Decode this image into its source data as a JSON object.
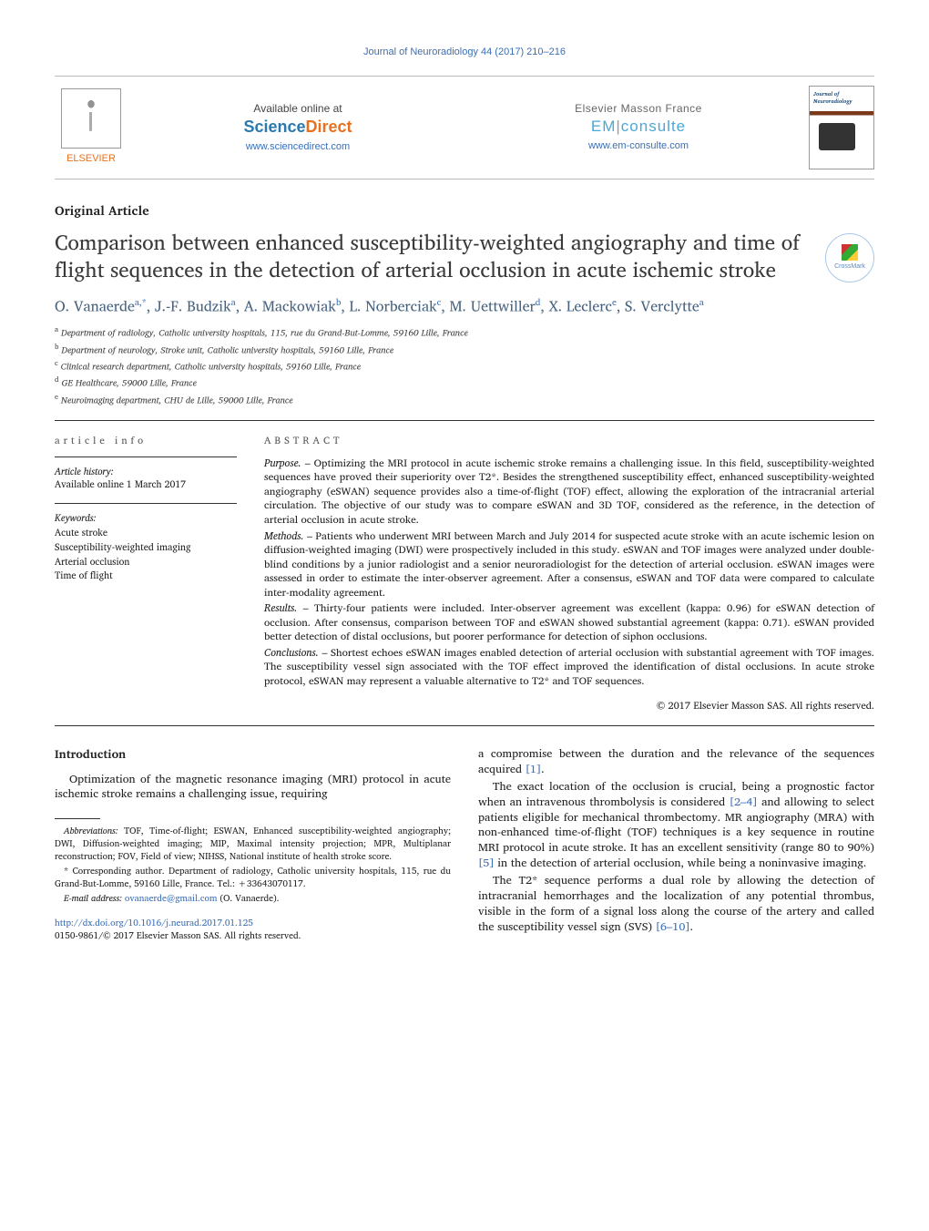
{
  "journal_header": "Journal of Neuroradiology 44 (2017) 210–216",
  "top": {
    "elsevier": "ELSEVIER",
    "available_label": "Available online at",
    "sciencedirect_1": "Science",
    "sciencedirect_2": "Direct",
    "sd_url": "www.sciencedirect.com",
    "masson_label": "Elsevier Masson France",
    "em_prefix": "EM",
    "em_consulte": "consulte",
    "em_url": "www.em-consulte.com"
  },
  "article_type": "Original Article",
  "title": "Comparison between enhanced susceptibility-weighted angiography and time of flight sequences in the detection of arterial occlusion in acute ischemic stroke",
  "crossmark": "CrossMark",
  "authors_html": "O. Vanaerde<sup>a,*</sup>, J.-F. Budzik<sup>a</sup>, A. Mackowiak<sup>b</sup>, L. Norberciak<sup>c</sup>, M. Uettwiller<sup>d</sup>, X. Leclerc<sup>e</sup>, S. Verclytte<sup>a</sup>",
  "affiliations": [
    {
      "sup": "a",
      "text": "Department of radiology, Catholic university hospitals, 115, rue du Grand-But-Lomme, 59160 Lille, France"
    },
    {
      "sup": "b",
      "text": "Department of neurology, Stroke unit, Catholic university hospitals, 59160 Lille, France"
    },
    {
      "sup": "c",
      "text": "Clinical research department, Catholic university hospitals, 59160 Lille, France"
    },
    {
      "sup": "d",
      "text": "GE Healthcare, 59000 Lille, France"
    },
    {
      "sup": "e",
      "text": "Neuroimaging department, CHU de Lille, 59000 Lille, France"
    }
  ],
  "info": {
    "section_label": "article info",
    "history_label": "Article history:",
    "history_text": "Available online 1 March 2017",
    "keywords_label": "Keywords:",
    "keywords": [
      "Acute stroke",
      "Susceptibility-weighted imaging",
      "Arterial occlusion",
      "Time of flight"
    ]
  },
  "abstract": {
    "section_label": "abstract",
    "paras": [
      {
        "label": "Purpose. –",
        "text": "Optimizing the MRI protocol in acute ischemic stroke remains a challenging issue. In this field, susceptibility-weighted sequences have proved their superiority over T2*. Besides the strengthened susceptibility effect, enhanced susceptibility-weighted angiography (eSWAN) sequence provides also a time-of-flight (TOF) effect, allowing the exploration of the intracranial arterial circulation. The objective of our study was to compare eSWAN and 3D TOF, considered as the reference, in the detection of arterial occlusion in acute stroke."
      },
      {
        "label": "Methods. –",
        "text": "Patients who underwent MRI between March and July 2014 for suspected acute stroke with an acute ischemic lesion on diffusion-weighted imaging (DWI) were prospectively included in this study. eSWAN and TOF images were analyzed under double-blind conditions by a junior radiologist and a senior neuroradiologist for the detection of arterial occlusion. eSWAN images were assessed in order to estimate the inter-observer agreement. After a consensus, eSWAN and TOF data were compared to calculate inter-modality agreement."
      },
      {
        "label": "Results. –",
        "text": "Thirty-four patients were included. Inter-observer agreement was excellent (kappa: 0.96) for eSWAN detection of occlusion. After consensus, comparison between TOF and eSWAN showed substantial agreement (kappa: 0.71). eSWAN provided better detection of distal occlusions, but poorer performance for detection of siphon occlusions."
      },
      {
        "label": "Conclusions. –",
        "text": "Shortest echoes eSWAN images enabled detection of arterial occlusion with substantial agreement with TOF images. The susceptibility vessel sign associated with the TOF effect improved the identification of distal occlusions. In acute stroke protocol, eSWAN may represent a valuable alternative to T2* and TOF sequences."
      }
    ],
    "copyright": "© 2017 Elsevier Masson SAS. All rights reserved."
  },
  "body": {
    "intro_head": "Introduction",
    "left_p1": "Optimization of the magnetic resonance imaging (MRI) protocol in acute ischemic stroke remains a challenging issue, requiring",
    "right_p1_a": "a compromise between the duration and the relevance of the sequences acquired ",
    "right_p1_ref": "[1]",
    "right_p1_b": ".",
    "right_p2_a": "The exact location of the occlusion is crucial, being a prognostic factor when an intravenous thrombolysis is considered ",
    "right_p2_ref1": "[2–4]",
    "right_p2_b": " and allowing to select patients eligible for mechanical thrombectomy. MR angiography (MRA) with non-enhanced time-of-flight (TOF) techniques is a key sequence in routine MRI protocol in acute stroke. It has an excellent sensitivity (range 80 to 90%) ",
    "right_p2_ref2": "[5]",
    "right_p2_c": " in the detection of arterial occlusion, while being a noninvasive imaging.",
    "right_p3_a": "The T2* sequence performs a dual role by allowing the detection of intracranial hemorrhages and the localization of any potential thrombus, visible in the form of a signal loss along the course of the artery and called the susceptibility vessel sign (SVS) ",
    "right_p3_ref": "[6–10]",
    "right_p3_b": "."
  },
  "footnotes": {
    "abbrev_label": "Abbreviations:",
    "abbrev_text": " TOF, Time-of-flight; ESWAN, Enhanced susceptibility-weighted angiography; DWI, Diffusion-weighted imaging; MIP, Maximal intensity projection; MPR, Multiplanar reconstruction; FOV, Field of view; NIHSS, National institute of health stroke score.",
    "corresp": "* Corresponding author. Department of radiology, Catholic university hospitals, 115, rue du Grand-But-Lomme, 59160 Lille, France. Tel.: +33643070117.",
    "email_label": "E-mail address: ",
    "email": "ovanaerde@gmail.com",
    "email_who": " (O. Vanaerde)."
  },
  "doi": {
    "url": "http://dx.doi.org/10.1016/j.neurad.2017.01.125",
    "issn": "0150-9861/© 2017 Elsevier Masson SAS. All rights reserved."
  },
  "colors": {
    "link": "#3a6fb7",
    "elsevier_orange": "#e9711c",
    "author_blue": "#47637f"
  }
}
